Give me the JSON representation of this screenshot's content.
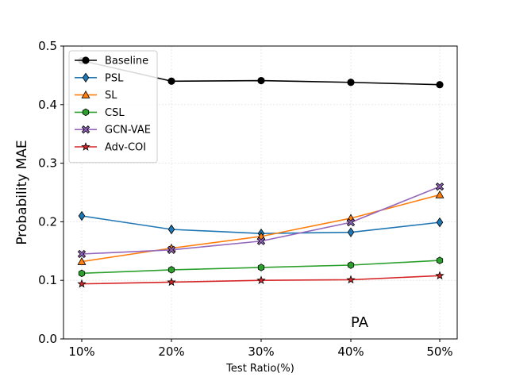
{
  "chart_data": {
    "type": "line",
    "x": [
      "10%",
      "20%",
      "30%",
      "40%",
      "50%"
    ],
    "xlabel": "Test Ratio(%)",
    "ylabel": "Probability MAE",
    "ylim": [
      0.0,
      0.5
    ],
    "yticks": [
      "0.0",
      "0.1",
      "0.2",
      "0.3",
      "0.4",
      "0.5"
    ],
    "grid": true,
    "legend_position": "upper-left",
    "annotation": "PA",
    "series": [
      {
        "name": "Baseline",
        "values": [
          0.475,
          0.44,
          0.441,
          0.438,
          0.434
        ],
        "color": "#000000",
        "marker": "circle"
      },
      {
        "name": "PSL",
        "values": [
          0.21,
          0.187,
          0.18,
          0.182,
          0.199
        ],
        "color": "#1f77b4",
        "marker": "diamond"
      },
      {
        "name": "SL",
        "values": [
          0.132,
          0.155,
          0.175,
          0.206,
          0.246
        ],
        "color": "#ff7f0e",
        "marker": "triangle"
      },
      {
        "name": "CSL",
        "values": [
          0.112,
          0.118,
          0.122,
          0.126,
          0.134
        ],
        "color": "#2ca02c",
        "marker": "hexagon"
      },
      {
        "name": "GCN-VAE",
        "values": [
          0.145,
          0.152,
          0.167,
          0.199,
          0.26
        ],
        "color": "#9467bd",
        "marker": "x-filled"
      },
      {
        "name": "Adv-COI",
        "values": [
          0.094,
          0.097,
          0.1,
          0.101,
          0.108
        ],
        "color": "#d62728",
        "marker": "star"
      }
    ]
  }
}
